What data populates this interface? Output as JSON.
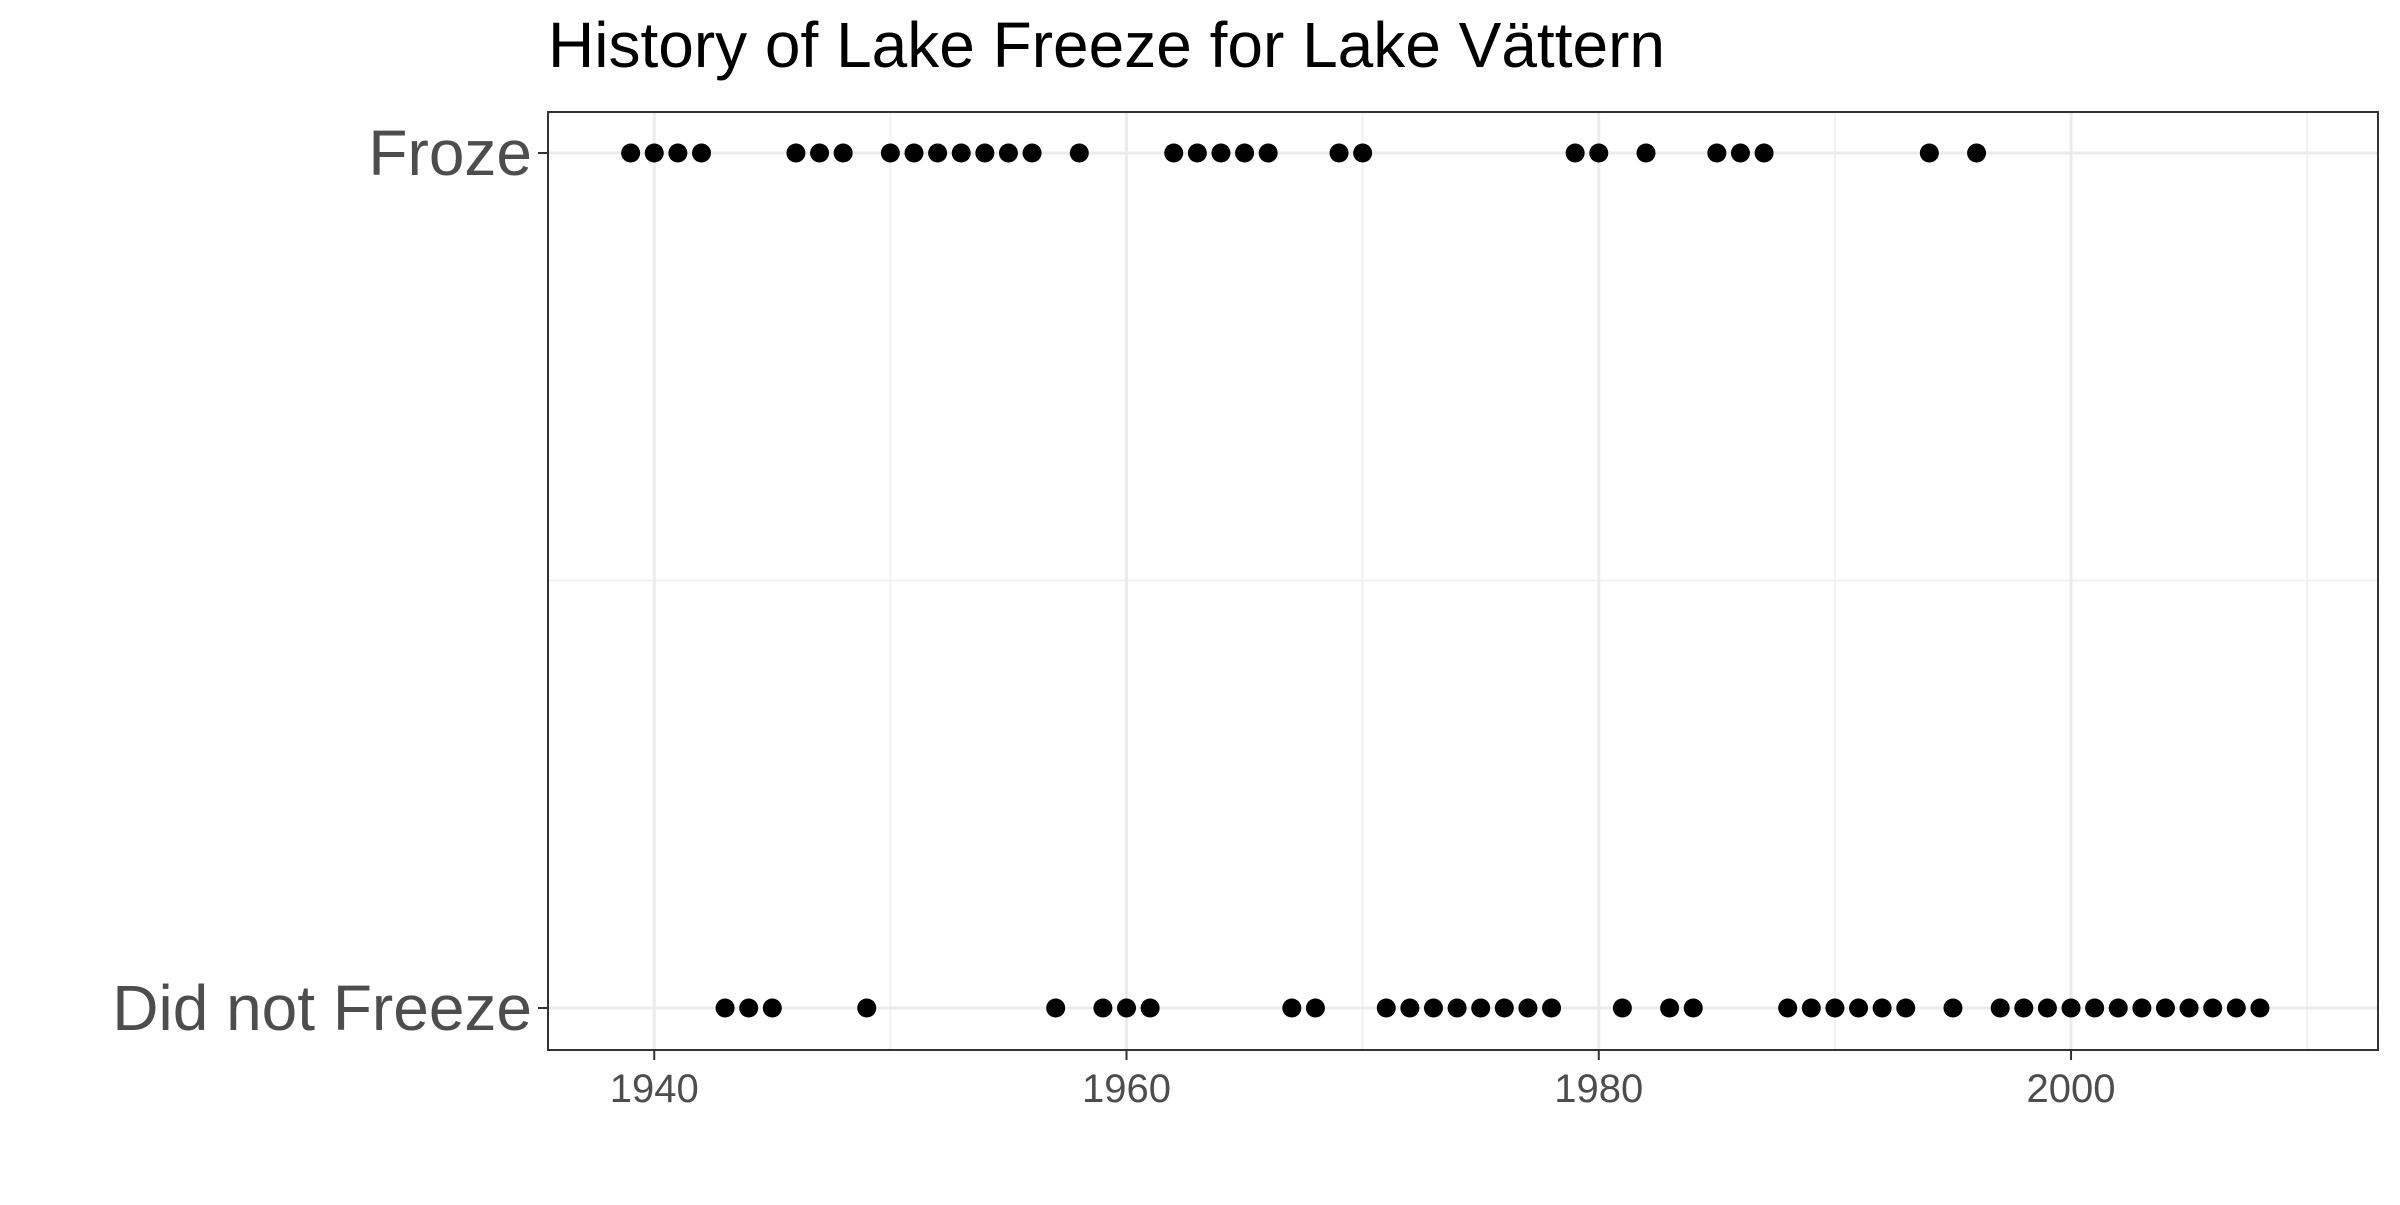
{
  "colors": {
    "background": "#ffffff",
    "panel_border": "#333333",
    "grid_major": "#ebebeb",
    "grid_minor": "#f2f2f2",
    "point": "#000000",
    "axis_text_y": "#4d4d4d",
    "axis_text_x": "#4d4d4d",
    "title": "#000000"
  },
  "chart_data": {
    "type": "scatter",
    "title": "History of Lake Freeze for Lake Vättern",
    "xlabel": "",
    "ylabel": "",
    "xlim": [
      1935.5,
      2013
    ],
    "x_ticks": [
      1940,
      1960,
      1980,
      2000
    ],
    "x_tick_labels": [
      "1940",
      "1960",
      "1980",
      "2000"
    ],
    "x_minor_ticks": [
      1950,
      1970,
      1990,
      2010
    ],
    "categories": [
      "Did not Freeze",
      "Froze"
    ],
    "grid": true,
    "legend": "none",
    "series": [
      {
        "category": "Froze",
        "x": [
          1939,
          1940,
          1941,
          1942,
          1946,
          1947,
          1948,
          1950,
          1951,
          1952,
          1953,
          1954,
          1955,
          1956,
          1958,
          1962,
          1963,
          1964,
          1965,
          1966,
          1969,
          1970,
          1979,
          1980,
          1982,
          1985,
          1986,
          1987,
          1994,
          1996
        ]
      },
      {
        "category": "Did not Freeze",
        "x": [
          1943,
          1944,
          1945,
          1949,
          1957,
          1959,
          1960,
          1961,
          1967,
          1968,
          1971,
          1972,
          1973,
          1974,
          1975,
          1976,
          1977,
          1978,
          1981,
          1983,
          1984,
          1988,
          1989,
          1990,
          1991,
          1992,
          1993,
          1995,
          1997,
          1998,
          1999,
          2000,
          2001,
          2002,
          2003,
          2004,
          2005,
          2006,
          2007,
          2008
        ]
      }
    ]
  }
}
